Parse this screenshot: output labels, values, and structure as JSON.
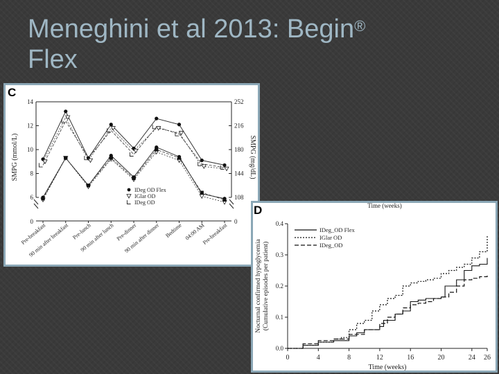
{
  "slide": {
    "title_line1": "Meneghini et al 2013: Begin",
    "title_sup": "®",
    "title_line2": "Flex"
  },
  "colors": {
    "background": "#3a3a3a",
    "title": "#9fb7c4",
    "frame": "#8ba7b6"
  },
  "chart_data": [
    {
      "panel_label": "C",
      "type": "line",
      "categories": [
        "Pre-breakfast",
        "90 min after breakfast",
        "Pre-lunch",
        "90 min after lunch",
        "Pre-dinner",
        "90 min after dinner",
        "Bedtime",
        "04:00 AM",
        "Pre-breakfast"
      ],
      "ylabel": "SMPG (mmol/L)",
      "ylabel_right": "SMPG (mg/dL)",
      "ylim": [
        6,
        14
      ],
      "yticks": [
        "14",
        "12",
        "10",
        "8",
        "6"
      ],
      "yticks_right": [
        "252",
        "216",
        "180",
        "144",
        "108"
      ],
      "y_zero_left": "0",
      "y_zero_right": "0",
      "series": [
        {
          "name": "IDeg OD Flex",
          "legend_label": "IDeg OD Flex",
          "marker": "circle",
          "day": [
            9.2,
            13.2,
            9.3,
            12.1,
            10.1,
            12.6,
            12.1,
            9.1,
            8.7
          ],
          "night": [
            6.0,
            9.3,
            7.0,
            9.5,
            7.7,
            10.2,
            9.4,
            6.3,
            5.9
          ]
        },
        {
          "name": "IGlar OD",
          "legend_label": "IGlar OD",
          "marker": "triangle",
          "day": [
            9.0,
            12.7,
            9.1,
            11.8,
            9.9,
            11.8,
            11.4,
            8.6,
            8.4
          ],
          "night": [
            5.8,
            9.3,
            6.9,
            9.2,
            7.5,
            9.8,
            9.1,
            6.1,
            5.6
          ]
        },
        {
          "name": "IDeg OD",
          "legend_label": "IDeg OD",
          "marker": "square",
          "day": [
            8.7,
            12.4,
            9.3,
            11.6,
            9.6,
            11.9,
            11.3,
            8.8,
            8.5
          ],
          "night": [
            5.9,
            9.3,
            7.0,
            9.3,
            7.6,
            10.0,
            9.3,
            6.4,
            5.8
          ]
        }
      ]
    },
    {
      "panel_label": "D",
      "type": "line",
      "top_label": "Time (weeks)",
      "xlabel": "Time (weeks)",
      "ylabel": "Nocturnal confirmed hypoglycemia",
      "ylabel2": "(Cumulative episodes per patient)",
      "xlim": [
        0,
        26
      ],
      "ylim": [
        0,
        0.4
      ],
      "xticks": [
        "0",
        "4",
        "8",
        "12",
        "16",
        "20",
        "24",
        "26"
      ],
      "xtick_values": [
        0,
        4,
        8,
        12,
        16,
        20,
        24,
        26
      ],
      "yticks": [
        "0.0",
        "0.1",
        "0.2",
        "0.3",
        "0.4"
      ],
      "ytick_values": [
        0,
        0.1,
        0.2,
        0.3,
        0.4
      ],
      "series": [
        {
          "name": "IDeg OD Flex",
          "legend_label": "IDeg_OD Flex",
          "style": "solid",
          "x": [
            0,
            2,
            4,
            6,
            8,
            9,
            10,
            12,
            12.5,
            14,
            15,
            16,
            17,
            18,
            20,
            20.5,
            22,
            23,
            24,
            25,
            26
          ],
          "y": [
            0,
            0.01,
            0.02,
            0.025,
            0.04,
            0.05,
            0.06,
            0.07,
            0.09,
            0.11,
            0.12,
            0.15,
            0.155,
            0.16,
            0.165,
            0.2,
            0.22,
            0.25,
            0.265,
            0.27,
            0.29
          ]
        },
        {
          "name": "IGlar OD",
          "legend_label": "IGlar OD",
          "style": "dotted",
          "x": [
            0,
            2,
            4,
            6,
            7,
            8,
            9,
            10,
            11,
            12,
            13,
            14,
            15,
            16,
            17,
            18,
            19,
            20,
            21,
            22,
            23,
            24,
            25,
            26
          ],
          "y": [
            0,
            0.01,
            0.02,
            0.03,
            0.035,
            0.06,
            0.08,
            0.09,
            0.12,
            0.14,
            0.16,
            0.17,
            0.2,
            0.21,
            0.215,
            0.22,
            0.225,
            0.24,
            0.25,
            0.26,
            0.27,
            0.29,
            0.31,
            0.36
          ]
        },
        {
          "name": "IDeg OD",
          "legend_label": "IDeg_OD",
          "style": "dashed",
          "x": [
            0,
            2,
            4,
            6,
            8,
            10,
            12,
            13,
            14,
            15,
            16,
            17,
            18,
            19,
            20,
            21,
            22,
            23,
            24,
            25,
            26
          ],
          "y": [
            0,
            0.015,
            0.025,
            0.03,
            0.045,
            0.06,
            0.08,
            0.1,
            0.11,
            0.13,
            0.14,
            0.145,
            0.15,
            0.16,
            0.165,
            0.18,
            0.2,
            0.22,
            0.225,
            0.23,
            0.24
          ]
        }
      ]
    }
  ]
}
